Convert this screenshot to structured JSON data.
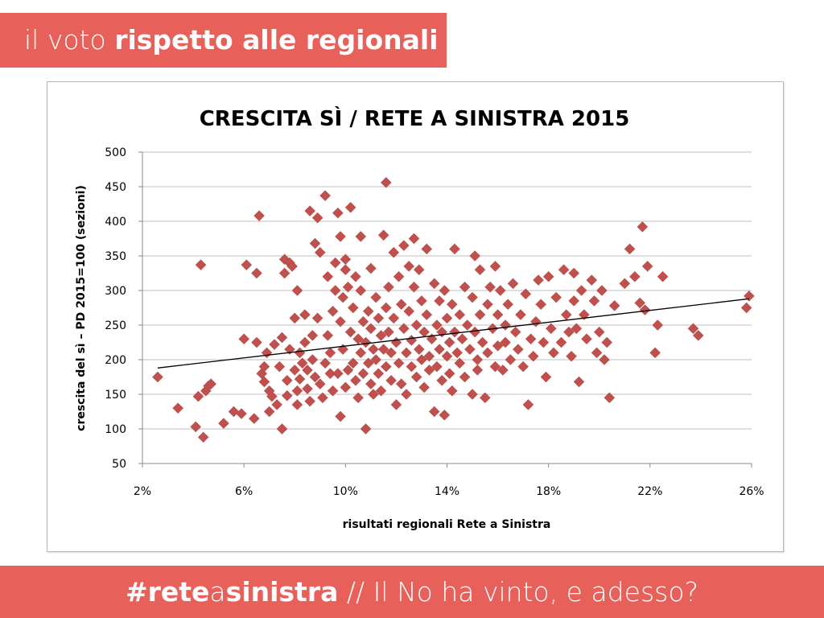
{
  "header": {
    "prefix": "il voto",
    "highlight": "rispetto alle regionali"
  },
  "footer": {
    "hashtag_part1": "#rete",
    "hashtag_part2": "a",
    "hashtag_part3": "sinistra",
    "tagline": " // Il No ha vinto, e adesso?"
  },
  "colors": {
    "banner": "#e8605a",
    "marker": "#c0504d",
    "trendline": "#000000",
    "grid": "#bfbfbf"
  },
  "chart_data": {
    "type": "scatter",
    "title": "CRESCITA SÌ / RETE A SINISTRA 2015",
    "xlabel": "risultati regionali Rete a Sinistra",
    "ylabel": "crescita del sì – PD 2015=100 (sezioni)",
    "xlim": [
      2,
      26
    ],
    "ylim": [
      50,
      500
    ],
    "x_ticks": [
      2,
      6,
      10,
      14,
      18,
      22,
      26
    ],
    "x_tick_labels": [
      "2%",
      "6%",
      "10%",
      "14%",
      "18%",
      "22%",
      "26%"
    ],
    "y_ticks": [
      50,
      100,
      150,
      200,
      250,
      300,
      350,
      400,
      450,
      500
    ],
    "y_tick_labels": [
      "50",
      "100",
      "150",
      "200",
      "250",
      "300",
      "350",
      "400",
      "450",
      "500"
    ],
    "grid": "horizontal",
    "legend": "none",
    "marker": "diamond",
    "trendline": {
      "type": "linear",
      "x": [
        2.6,
        25.9
      ],
      "y": [
        188,
        288
      ]
    },
    "points": [
      [
        2.6,
        175
      ],
      [
        3.4,
        130
      ],
      [
        4.1,
        103
      ],
      [
        4.2,
        147
      ],
      [
        4.3,
        337
      ],
      [
        4.4,
        88
      ],
      [
        4.5,
        155
      ],
      [
        4.6,
        162
      ],
      [
        4.7,
        165
      ],
      [
        5.2,
        108
      ],
      [
        5.6,
        125
      ],
      [
        5.9,
        122
      ],
      [
        6.0,
        230
      ],
      [
        6.1,
        337
      ],
      [
        6.4,
        115
      ],
      [
        6.5,
        225
      ],
      [
        6.5,
        325
      ],
      [
        6.6,
        408
      ],
      [
        6.7,
        180
      ],
      [
        6.8,
        190
      ],
      [
        6.8,
        168
      ],
      [
        6.9,
        210
      ],
      [
        7.0,
        125
      ],
      [
        7.0,
        155
      ],
      [
        7.1,
        147
      ],
      [
        7.2,
        222
      ],
      [
        7.3,
        135
      ],
      [
        7.4,
        190
      ],
      [
        7.5,
        100
      ],
      [
        7.5,
        232
      ],
      [
        7.6,
        325
      ],
      [
        7.6,
        345
      ],
      [
        7.7,
        148
      ],
      [
        7.7,
        170
      ],
      [
        7.8,
        340
      ],
      [
        7.8,
        215
      ],
      [
        7.9,
        335
      ],
      [
        8.0,
        260
      ],
      [
        8.0,
        185
      ],
      [
        8.1,
        135
      ],
      [
        8.1,
        155
      ],
      [
        8.1,
        300
      ],
      [
        8.2,
        172
      ],
      [
        8.2,
        210
      ],
      [
        8.3,
        195
      ],
      [
        8.4,
        225
      ],
      [
        8.4,
        265
      ],
      [
        8.5,
        185
      ],
      [
        8.5,
        158
      ],
      [
        8.6,
        415
      ],
      [
        8.6,
        140
      ],
      [
        8.7,
        200
      ],
      [
        8.7,
        235
      ],
      [
        8.8,
        368
      ],
      [
        8.8,
        175
      ],
      [
        8.9,
        405
      ],
      [
        8.9,
        260
      ],
      [
        9.0,
        355
      ],
      [
        9.0,
        165
      ],
      [
        9.1,
        145
      ],
      [
        9.2,
        437
      ],
      [
        9.2,
        195
      ],
      [
        9.3,
        320
      ],
      [
        9.3,
        235
      ],
      [
        9.4,
        180
      ],
      [
        9.4,
        210
      ],
      [
        9.5,
        155
      ],
      [
        9.5,
        270
      ],
      [
        9.6,
        340
      ],
      [
        9.6,
        300
      ],
      [
        9.7,
        412
      ],
      [
        9.7,
        180
      ],
      [
        9.8,
        378
      ],
      [
        9.8,
        255
      ],
      [
        9.8,
        118
      ],
      [
        9.9,
        290
      ],
      [
        9.9,
        215
      ],
      [
        10.0,
        345
      ],
      [
        10.0,
        330
      ],
      [
        10.0,
        160
      ],
      [
        10.1,
        305
      ],
      [
        10.1,
        185
      ],
      [
        10.2,
        420
      ],
      [
        10.2,
        240
      ],
      [
        10.3,
        275
      ],
      [
        10.3,
        195
      ],
      [
        10.4,
        320
      ],
      [
        10.4,
        170
      ],
      [
        10.5,
        230
      ],
      [
        10.5,
        145
      ],
      [
        10.6,
        378
      ],
      [
        10.6,
        300
      ],
      [
        10.6,
        210
      ],
      [
        10.7,
        255
      ],
      [
        10.7,
        180
      ],
      [
        10.8,
        100
      ],
      [
        10.8,
        225
      ],
      [
        10.9,
        270
      ],
      [
        10.9,
        195
      ],
      [
        11.0,
        332
      ],
      [
        11.0,
        165
      ],
      [
        11.0,
        245
      ],
      [
        11.1,
        215
      ],
      [
        11.1,
        150
      ],
      [
        11.2,
        290
      ],
      [
        11.2,
        200
      ],
      [
        11.3,
        260
      ],
      [
        11.3,
        180
      ],
      [
        11.4,
        235
      ],
      [
        11.4,
        155
      ],
      [
        11.5,
        380
      ],
      [
        11.5,
        215
      ],
      [
        11.6,
        456
      ],
      [
        11.6,
        275
      ],
      [
        11.6,
        190
      ],
      [
        11.7,
        305
      ],
      [
        11.7,
        240
      ],
      [
        11.8,
        170
      ],
      [
        11.8,
        210
      ],
      [
        11.9,
        355
      ],
      [
        11.9,
        260
      ],
      [
        12.0,
        225
      ],
      [
        12.0,
        135
      ],
      [
        12.1,
        320
      ],
      [
        12.1,
        195
      ],
      [
        12.2,
        280
      ],
      [
        12.2,
        165
      ],
      [
        12.3,
        365
      ],
      [
        12.3,
        245
      ],
      [
        12.4,
        210
      ],
      [
        12.4,
        150
      ],
      [
        12.5,
        335
      ],
      [
        12.5,
        270
      ],
      [
        12.6,
        190
      ],
      [
        12.6,
        228
      ],
      [
        12.7,
        375
      ],
      [
        12.7,
        305
      ],
      [
        12.8,
        250
      ],
      [
        12.8,
        175
      ],
      [
        12.9,
        215
      ],
      [
        12.9,
        330
      ],
      [
        13.0,
        285
      ],
      [
        13.0,
        200
      ],
      [
        13.1,
        240
      ],
      [
        13.1,
        160
      ],
      [
        13.2,
        360
      ],
      [
        13.2,
        265
      ],
      [
        13.3,
        205
      ],
      [
        13.3,
        185
      ],
      [
        13.4,
        230
      ],
      [
        13.5,
        310
      ],
      [
        13.5,
        125
      ],
      [
        13.6,
        250
      ],
      [
        13.6,
        190
      ],
      [
        13.7,
        285
      ],
      [
        13.7,
        215
      ],
      [
        13.8,
        170
      ],
      [
        13.8,
        240
      ],
      [
        13.9,
        120
      ],
      [
        13.9,
        300
      ],
      [
        14.0,
        260
      ],
      [
        14.0,
        205
      ],
      [
        14.1,
        225
      ],
      [
        14.1,
        180
      ],
      [
        14.2,
        155
      ],
      [
        14.2,
        280
      ],
      [
        14.3,
        360
      ],
      [
        14.3,
        240
      ],
      [
        14.4,
        210
      ],
      [
        14.5,
        195
      ],
      [
        14.5,
        265
      ],
      [
        14.6,
        230
      ],
      [
        14.7,
        175
      ],
      [
        14.7,
        305
      ],
      [
        14.8,
        250
      ],
      [
        14.9,
        215
      ],
      [
        15.0,
        290
      ],
      [
        15.0,
        150
      ],
      [
        15.1,
        350
      ],
      [
        15.1,
        240
      ],
      [
        15.2,
        200
      ],
      [
        15.2,
        185
      ],
      [
        15.3,
        330
      ],
      [
        15.3,
        265
      ],
      [
        15.4,
        225
      ],
      [
        15.5,
        145
      ],
      [
        15.6,
        280
      ],
      [
        15.6,
        210
      ],
      [
        15.7,
        305
      ],
      [
        15.8,
        245
      ],
      [
        15.9,
        190
      ],
      [
        15.9,
        335
      ],
      [
        16.0,
        265
      ],
      [
        16.0,
        220
      ],
      [
        16.1,
        300
      ],
      [
        16.2,
        185
      ],
      [
        16.3,
        250
      ],
      [
        16.3,
        225
      ],
      [
        16.4,
        280
      ],
      [
        16.5,
        200
      ],
      [
        16.6,
        310
      ],
      [
        16.7,
        240
      ],
      [
        16.8,
        215
      ],
      [
        16.9,
        265
      ],
      [
        17.0,
        190
      ],
      [
        17.1,
        295
      ],
      [
        17.2,
        135
      ],
      [
        17.3,
        230
      ],
      [
        17.4,
        205
      ],
      [
        17.5,
        255
      ],
      [
        17.6,
        315
      ],
      [
        17.7,
        280
      ],
      [
        17.8,
        225
      ],
      [
        17.9,
        175
      ],
      [
        18.0,
        320
      ],
      [
        18.1,
        245
      ],
      [
        18.2,
        210
      ],
      [
        18.3,
        290
      ],
      [
        18.5,
        225
      ],
      [
        18.6,
        330
      ],
      [
        18.7,
        265
      ],
      [
        18.8,
        240
      ],
      [
        18.9,
        205
      ],
      [
        19.0,
        325
      ],
      [
        19.0,
        285
      ],
      [
        19.1,
        245
      ],
      [
        19.2,
        168
      ],
      [
        19.3,
        300
      ],
      [
        19.4,
        265
      ],
      [
        19.5,
        230
      ],
      [
        19.7,
        315
      ],
      [
        19.8,
        285
      ],
      [
        19.9,
        210
      ],
      [
        20.0,
        240
      ],
      [
        20.1,
        300
      ],
      [
        20.2,
        200
      ],
      [
        20.3,
        225
      ],
      [
        20.4,
        145
      ],
      [
        20.6,
        278
      ],
      [
        21.0,
        310
      ],
      [
        21.2,
        360
      ],
      [
        21.4,
        320
      ],
      [
        21.6,
        282
      ],
      [
        21.7,
        392
      ],
      [
        21.8,
        272
      ],
      [
        21.9,
        335
      ],
      [
        22.2,
        210
      ],
      [
        22.3,
        250
      ],
      [
        22.5,
        320
      ],
      [
        23.7,
        245
      ],
      [
        23.9,
        235
      ],
      [
        25.9,
        292
      ],
      [
        25.8,
        275
      ]
    ]
  }
}
